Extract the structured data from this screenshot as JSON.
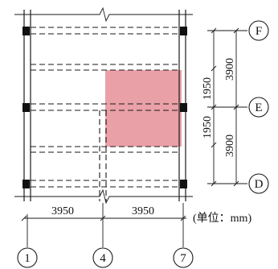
{
  "axes": {
    "vertical": [
      {
        "id": "axis-1",
        "label": "1"
      },
      {
        "id": "axis-4",
        "label": "4"
      },
      {
        "id": "axis-7",
        "label": "7"
      }
    ],
    "horizontal": [
      {
        "id": "axis-f",
        "label": "F"
      },
      {
        "id": "axis-e",
        "label": "E"
      },
      {
        "id": "axis-d",
        "label": "D"
      }
    ]
  },
  "dimensions": {
    "bottom": [
      "3950",
      "3950"
    ],
    "right_outer": [
      "3900",
      "3900"
    ],
    "right_inner": [
      "1950",
      "1950"
    ]
  },
  "unit_note": "(单位：mm)",
  "colors": {
    "highlight": "#d9525f",
    "line": "#1a1a1a",
    "column": "#111111"
  }
}
